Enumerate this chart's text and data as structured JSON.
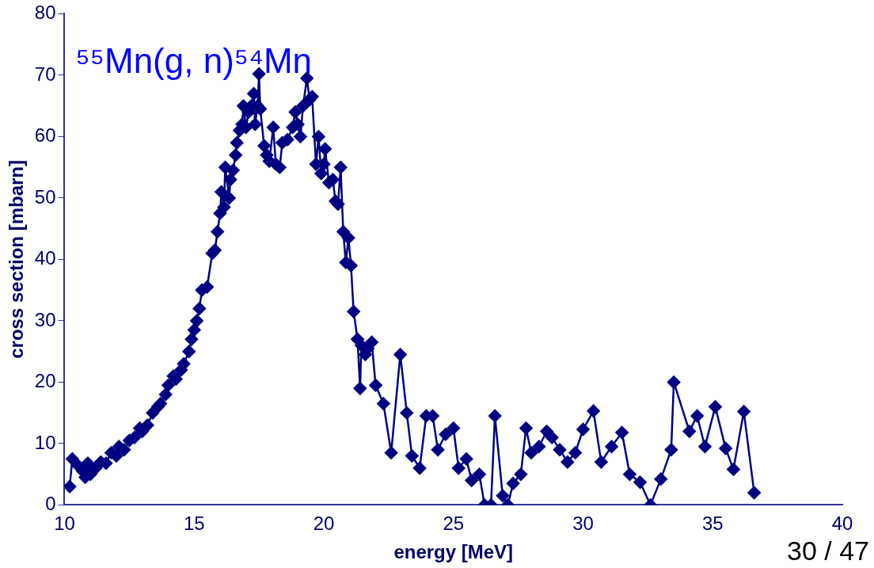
{
  "chart_data": {
    "type": "line",
    "title": "⁵⁵Mn(g, n)⁵⁴Mn",
    "xlabel": "energy [MeV]",
    "ylabel": "cross section [mbarn]",
    "x": [
      10.2,
      10.3,
      10.5,
      10.7,
      10.8,
      10.9,
      11.0,
      11.2,
      11.4,
      11.6,
      11.8,
      12.0,
      12.1,
      12.3,
      12.5,
      12.7,
      12.9,
      13.0,
      13.2,
      13.4,
      13.6,
      13.7,
      13.9,
      14.0,
      14.2,
      14.3,
      14.5,
      14.6,
      14.8,
      14.9,
      15.0,
      15.1,
      15.2,
      15.3,
      15.5,
      15.7,
      15.8,
      15.9,
      16.0,
      16.05,
      16.15,
      16.2,
      16.35,
      16.4,
      16.5,
      16.6,
      16.65,
      16.75,
      16.85,
      16.9,
      17.0,
      17.1,
      17.2,
      17.3,
      17.35,
      17.45,
      17.5,
      17.55,
      17.7,
      17.8,
      17.9,
      18.05,
      18.15,
      18.3,
      18.4,
      18.6,
      18.8,
      18.9,
      19.0,
      19.1,
      19.2,
      19.35,
      19.45,
      19.55,
      19.7,
      19.8,
      19.9,
      20.0,
      20.05,
      20.2,
      20.35,
      20.45,
      20.55,
      20.65,
      20.75,
      20.85,
      20.95,
      21.05,
      21.15,
      21.3,
      21.4,
      21.45,
      21.6,
      21.7,
      21.85,
      22.0,
      22.3,
      22.6,
      22.95,
      23.2,
      23.4,
      23.7,
      23.95,
      24.2,
      24.4,
      24.7,
      25.0,
      25.2,
      25.5,
      25.7,
      26.0,
      26.2,
      26.45,
      26.6,
      26.9,
      27.1,
      27.3,
      27.6,
      27.8,
      28.0,
      28.3,
      28.6,
      28.8,
      29.1,
      29.4,
      29.7,
      30.0,
      30.4,
      30.7,
      31.1,
      31.5,
      31.8,
      32.2,
      32.6,
      33.0,
      33.4,
      33.5,
      34.1,
      34.4,
      34.7,
      35.1,
      35.5,
      35.8,
      36.2,
      36.6
    ],
    "series": [
      {
        "color": "#000080",
        "values": [
          3,
          7.5,
          6.5,
          5.5,
          4.5,
          6.8,
          5,
          6,
          7,
          6.8,
          8.5,
          8,
          9.5,
          9,
          10.5,
          11,
          12.5,
          12,
          13,
          15,
          16,
          16.5,
          18,
          19.5,
          21,
          20.5,
          22,
          23,
          25,
          27,
          28.5,
          30,
          32,
          35,
          35.5,
          41,
          41.5,
          44.5,
          47.5,
          51,
          48.5,
          55,
          50,
          53,
          54.5,
          57,
          59,
          61,
          62,
          65,
          61.5,
          64,
          65,
          67,
          62,
          65,
          70.2,
          64.5,
          58.5,
          57,
          56,
          61.5,
          55.5,
          55,
          59,
          59.5,
          61.5,
          64,
          62,
          60,
          65,
          69.5,
          66,
          66.5,
          55.5,
          60,
          54,
          55.5,
          58,
          52.5,
          53,
          49.5,
          49,
          55,
          44.5,
          39.5,
          43.5,
          39,
          31.5,
          27,
          19,
          26,
          24.5,
          25.5,
          26.5,
          19.5,
          16.5,
          8.5,
          24.5,
          15,
          8,
          6,
          14.5,
          14.5,
          9,
          11.5,
          12.5,
          6,
          7.5,
          4,
          5,
          0,
          0,
          14.5,
          1.5,
          0,
          3.5,
          5,
          12.5,
          8.5,
          9.5,
          12,
          11,
          9,
          7,
          8.5,
          12.3,
          15.3,
          7,
          9.5,
          11.8,
          5,
          3.7,
          0,
          4.2,
          9,
          20,
          12,
          14.5,
          9.5,
          16,
          9.2,
          5.8,
          15.2,
          2
        ]
      }
    ],
    "xlim": [
      10,
      40
    ],
    "xticks": [
      10,
      15,
      20,
      25,
      30,
      35,
      40
    ],
    "ylim": [
      0,
      80
    ],
    "yticks": [
      0,
      10,
      20,
      30,
      40,
      50,
      60,
      70,
      80
    ],
    "grid": false,
    "legend": false,
    "marker": "diamond",
    "line_style": "solid",
    "annotations": [
      "30 / 47"
    ]
  }
}
